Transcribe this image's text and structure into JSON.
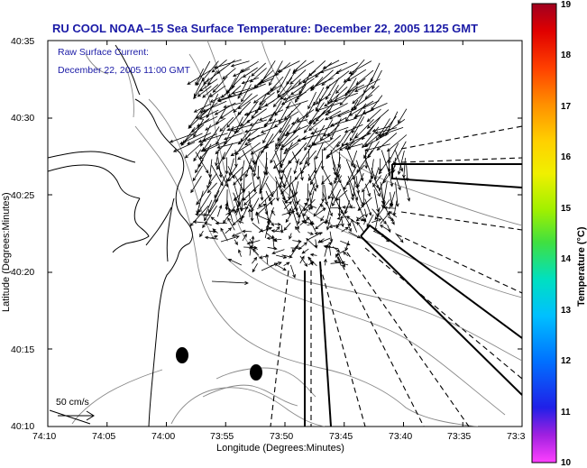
{
  "title": "RU COOL   NOAA–15  Sea Surface Temperature:  December 22, 2005 1125 GMT",
  "current_label": "Raw Surface Current:",
  "current_time": "December 22, 2005 11:00 GMT",
  "scale_label": "50 cm/s",
  "xlabel": "Longitude (Degrees:Minutes)",
  "ylabel": "Latitude (Degrees:Minutes)",
  "colorbar_label": "Temperature (°C)",
  "x_ticks": [
    "74:10",
    "74:05",
    "74:00",
    "73:55",
    "73:50",
    "73:45",
    "73:40",
    "73:35",
    "73:3"
  ],
  "y_ticks": [
    "40:35",
    "40:30",
    "40:25",
    "40:20",
    "40:15",
    "40:10"
  ],
  "colorbar": {
    "ticks": [
      "19",
      "18",
      "17",
      "16",
      "15",
      "14",
      "13",
      "12",
      "11",
      "10"
    ],
    "colors": [
      "#b8001f",
      "#ff2000",
      "#ff8a00",
      "#ffd200",
      "#d8f000",
      "#60e040",
      "#00d8c0",
      "#0090ff",
      "#0018e0",
      "#8000d0",
      "#ff40ff"
    ]
  },
  "map": {
    "lon_range": [
      "74:10",
      "73:30"
    ],
    "lat_range": [
      "40:10",
      "40:35"
    ],
    "buoys": 2,
    "colors": {
      "coast": "#000000",
      "bathymetry": "#808080",
      "vectors": "#000000",
      "frame": "#000000"
    }
  }
}
